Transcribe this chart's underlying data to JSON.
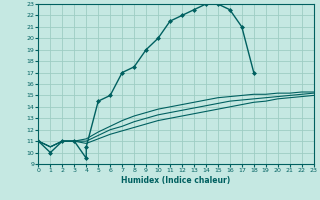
{
  "title": "",
  "xlabel": "Humidex (Indice chaleur)",
  "xlim": [
    0,
    23
  ],
  "ylim": [
    9,
    23
  ],
  "xticks": [
    0,
    1,
    2,
    3,
    4,
    5,
    6,
    7,
    8,
    9,
    10,
    11,
    12,
    13,
    14,
    15,
    16,
    17,
    18,
    19,
    20,
    21,
    22,
    23
  ],
  "yticks": [
    9,
    10,
    11,
    12,
    13,
    14,
    15,
    16,
    17,
    18,
    19,
    20,
    21,
    22,
    23
  ],
  "bg_color": "#c5e8e2",
  "grid_color": "#9ecdc4",
  "line_color": "#006060",
  "lines": [
    {
      "x": [
        0,
        1,
        2,
        3,
        4,
        4,
        5,
        6,
        7,
        8,
        9,
        10,
        11,
        12,
        13,
        14,
        15,
        16,
        17,
        18
      ],
      "y": [
        11,
        10,
        11,
        11,
        9.5,
        10.5,
        14.5,
        15,
        17,
        17.5,
        19,
        20,
        21.5,
        22,
        22.5,
        23,
        23,
        22.5,
        21,
        17
      ],
      "marker": "D",
      "markersize": 2.0,
      "linewidth": 1.0
    },
    {
      "x": [
        0,
        1,
        2,
        3,
        4,
        5,
        6,
        7,
        8,
        9,
        10,
        11,
        12,
        13,
        14,
        15,
        16,
        17,
        18,
        19,
        20,
        21,
        22,
        23
      ],
      "y": [
        11,
        10.5,
        11,
        11,
        11.2,
        11.8,
        12.3,
        12.8,
        13.2,
        13.5,
        13.8,
        14.0,
        14.2,
        14.4,
        14.6,
        14.8,
        14.9,
        15.0,
        15.1,
        15.1,
        15.2,
        15.2,
        15.3,
        15.3
      ],
      "marker": null,
      "markersize": 0,
      "linewidth": 0.8
    },
    {
      "x": [
        0,
        1,
        2,
        3,
        4,
        5,
        6,
        7,
        8,
        9,
        10,
        11,
        12,
        13,
        14,
        15,
        16,
        17,
        18,
        19,
        20,
        21,
        22,
        23
      ],
      "y": [
        11,
        10.5,
        11,
        11,
        11.0,
        11.5,
        12.0,
        12.3,
        12.7,
        13.0,
        13.3,
        13.5,
        13.7,
        13.9,
        14.1,
        14.3,
        14.5,
        14.6,
        14.7,
        14.8,
        14.9,
        15.0,
        15.1,
        15.2
      ],
      "marker": null,
      "markersize": 0,
      "linewidth": 0.8
    },
    {
      "x": [
        0,
        1,
        2,
        3,
        4,
        5,
        6,
        7,
        8,
        9,
        10,
        11,
        12,
        13,
        14,
        15,
        16,
        17,
        18,
        19,
        20,
        21,
        22,
        23
      ],
      "y": [
        11,
        10.5,
        11,
        11,
        10.8,
        11.2,
        11.6,
        11.9,
        12.2,
        12.5,
        12.8,
        13.0,
        13.2,
        13.4,
        13.6,
        13.8,
        14.0,
        14.2,
        14.4,
        14.5,
        14.7,
        14.8,
        14.9,
        15.0
      ],
      "marker": null,
      "markersize": 0,
      "linewidth": 0.8
    }
  ]
}
